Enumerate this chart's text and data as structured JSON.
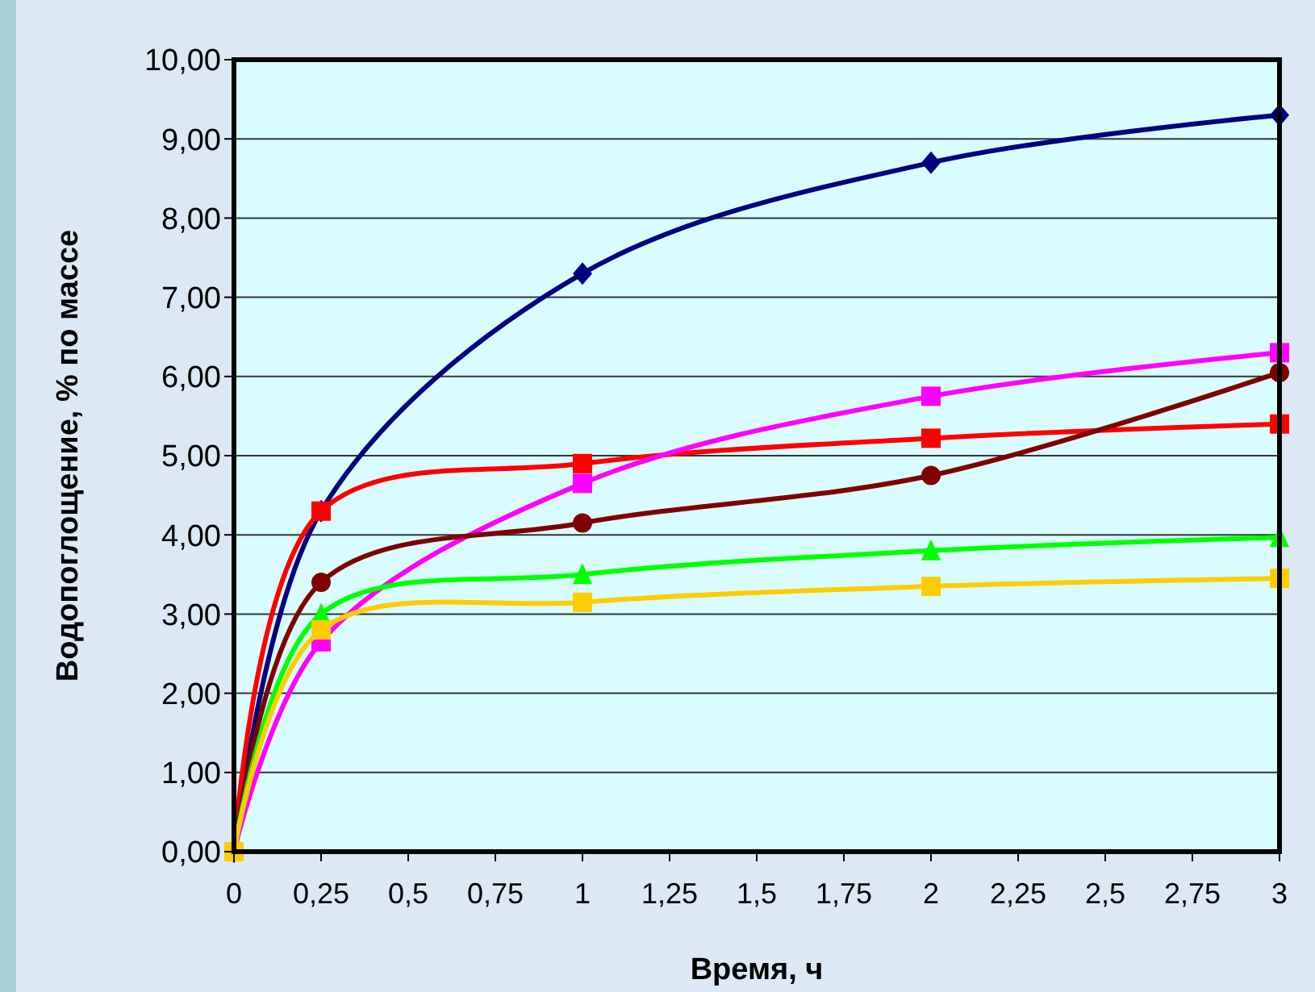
{
  "chart_data": {
    "type": "line",
    "xlabel": "Время, ч",
    "ylabel": "Водопоглощение, % по массе",
    "x": [
      0,
      0.25,
      1,
      2,
      3
    ],
    "series": [
      {
        "color": "#000080",
        "marker": "diamond",
        "values": [
          0,
          4.3,
          7.3,
          8.7,
          9.3
        ]
      },
      {
        "color": "#ff0000",
        "marker": "square",
        "values": [
          0,
          4.3,
          4.9,
          5.22,
          5.4
        ]
      },
      {
        "color": "#ff00ff",
        "marker": "square",
        "values": [
          0,
          2.65,
          4.65,
          5.75,
          6.3
        ]
      },
      {
        "color": "#800000",
        "marker": "circle",
        "values": [
          0,
          3.4,
          4.15,
          4.75,
          6.05
        ]
      },
      {
        "color": "#00ff00",
        "marker": "triangle",
        "values": [
          0,
          3.0,
          3.5,
          3.8,
          3.97
        ]
      },
      {
        "color": "#ffcc00",
        "marker": "square",
        "values": [
          0,
          2.8,
          3.15,
          3.35,
          3.45
        ]
      }
    ],
    "xlim": [
      0,
      3
    ],
    "xticks": [
      0,
      {
        "value": 0.25,
        "label": "0,25"
      },
      {
        "value": 0.5,
        "label": "0,5"
      },
      {
        "value": 0.75,
        "label": "0,75"
      },
      1,
      {
        "value": 1.25,
        "label": "1,25"
      },
      {
        "value": 1.5,
        "label": "1,5"
      },
      {
        "value": 1.75,
        "label": "1,75"
      },
      2,
      {
        "value": 2.25,
        "label": "2,25"
      },
      {
        "value": 2.5,
        "label": "2,5"
      },
      {
        "value": 2.75,
        "label": "2,75"
      },
      3
    ],
    "ylim": [
      0,
      10
    ],
    "yticks": [
      {
        "value": 0,
        "label": "0,00"
      },
      {
        "value": 1,
        "label": "1,00"
      },
      {
        "value": 2,
        "label": "2,00"
      },
      {
        "value": 3,
        "label": "3,00"
      },
      {
        "value": 4,
        "label": "4,00"
      },
      {
        "value": 5,
        "label": "5,00"
      },
      {
        "value": 6,
        "label": "6,00"
      },
      {
        "value": 7,
        "label": "7,00"
      },
      {
        "value": 8,
        "label": "8,00"
      },
      {
        "value": 9,
        "label": "9,00"
      },
      {
        "value": 10,
        "label": "10,00"
      }
    ],
    "grid": "y",
    "line_style": "solid"
  }
}
